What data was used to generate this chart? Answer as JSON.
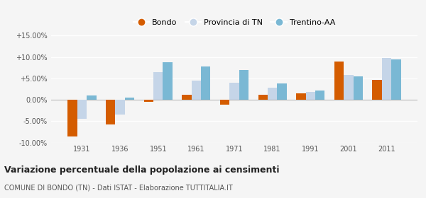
{
  "years": [
    1931,
    1936,
    1951,
    1961,
    1971,
    1981,
    1991,
    2001,
    2011
  ],
  "bondo": [
    -8.5,
    -5.8,
    -0.5,
    1.2,
    -1.2,
    1.2,
    1.5,
    9.0,
    4.7
  ],
  "provincia": [
    -4.5,
    -3.5,
    6.5,
    4.5,
    4.0,
    2.8,
    1.8,
    5.8,
    9.8
  ],
  "trentino": [
    1.0,
    0.5,
    8.8,
    7.8,
    7.0,
    3.8,
    2.2,
    5.4,
    9.5
  ],
  "color_bondo": "#d45c00",
  "color_provincia": "#c5d5e8",
  "color_trentino": "#7ab8d4",
  "ylim": [
    -10.0,
    15.0
  ],
  "yticks": [
    -10.0,
    -5.0,
    0.0,
    5.0,
    10.0,
    15.0
  ],
  "ytick_labels": [
    "-10.00%",
    "-5.00%",
    "0.00%",
    "+5.00%",
    "+10.00%",
    "+15.00%"
  ],
  "title": "Variazione percentuale della popolazione ai censimenti",
  "subtitle": "COMUNE DI BONDO (TN) - Dati ISTAT - Elaborazione TUTTITALIA.IT",
  "legend_labels": [
    "Bondo",
    "Provincia di TN",
    "Trentino-AA"
  ],
  "background_color": "#f5f5f5",
  "grid_color": "#ffffff"
}
